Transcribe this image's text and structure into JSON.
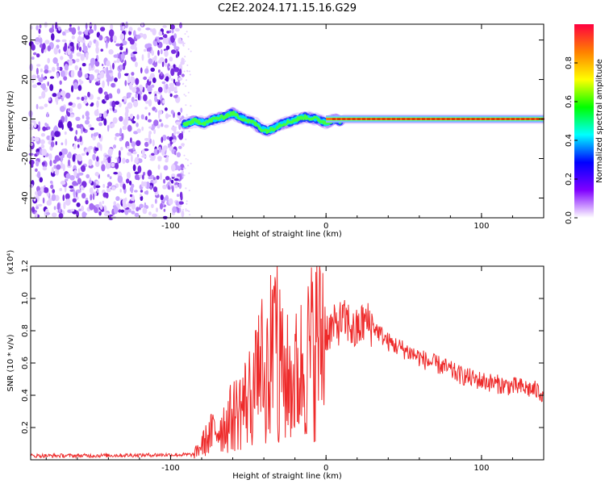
{
  "title": "C2E2.2024.171.15.16.G29",
  "chart_data": [
    {
      "type": "heatmap",
      "xlabel": "Height of straight line (km)",
      "ylabel": "Frequency (Hz)",
      "xlim": [
        -190,
        140
      ],
      "ylim": [
        -50,
        48
      ],
      "x_ticks": [
        -100,
        0,
        100
      ],
      "y_ticks": [
        -40,
        -20,
        0,
        20,
        40
      ],
      "noise_region_x": [
        -190,
        -92
      ],
      "noise_colors": [
        "#e6d2ff",
        "#c9a6ff",
        "#a56cf2",
        "#7a2fe0",
        "#5a10d0"
      ],
      "trace": {
        "x": [
          -92,
          -85,
          -78,
          -72,
          -66,
          -60,
          -56,
          -50,
          -46,
          -42,
          -38,
          -34,
          -30,
          -26,
          -22,
          -18,
          -14,
          -10,
          -6,
          -3,
          0,
          3,
          6,
          9,
          12,
          16,
          20,
          140
        ],
        "y": [
          -3,
          -1,
          -2,
          0,
          1,
          3,
          1,
          -1,
          -2,
          -5,
          -6,
          -5,
          -3,
          -2,
          -1,
          0,
          1,
          0.5,
          0,
          -1,
          -2,
          -1,
          0,
          -1,
          0,
          0,
          0,
          0
        ]
      },
      "colorbar": {
        "label": "Normalized spectral amplitude",
        "range": [
          0,
          1
        ],
        "ticks": [
          0.0,
          0.2,
          0.4,
          0.6,
          0.8
        ],
        "colors": [
          "#ffffff",
          "#8000ff",
          "#0000ff",
          "#00ffff",
          "#00ff00",
          "#ffff00",
          "#ff8000",
          "#ff0040"
        ]
      },
      "grid": false
    },
    {
      "type": "line",
      "xlabel": "Height of straight line (km)",
      "ylabel": "SNR (10 * v/v)",
      "y_multiplier": "(x10⁴)",
      "xlim": [
        -190,
        140
      ],
      "ylim": [
        0,
        12000
      ],
      "x_ticks": [
        -100,
        0,
        100
      ],
      "y_ticks": [
        0.2,
        0.4,
        0.6,
        0.8,
        1.0,
        1.2
      ],
      "line_color": "#ee2a2a",
      "series": [
        {
          "x": [
            -190,
            -150,
            -110,
            -85,
            -80,
            -72,
            -65,
            -58,
            -52,
            -46,
            -42,
            -38,
            -35,
            -33,
            -31,
            -28,
            -24,
            -20,
            -14,
            -8,
            -4,
            0,
            5,
            10,
            15,
            18,
            25,
            30,
            40,
            55,
            65,
            75,
            85,
            95,
            105,
            115,
            125,
            135,
            140
          ],
          "y": [
            250,
            260,
            300,
            320,
            900,
            1800,
            2200,
            2900,
            3600,
            4400,
            4800,
            5500,
            6500,
            12000,
            6200,
            5200,
            4900,
            5000,
            6000,
            7000,
            7600,
            8000,
            8200,
            8600,
            8500,
            7800,
            8600,
            8300,
            7300,
            6600,
            6100,
            5800,
            5300,
            5000,
            4800,
            4600,
            4500,
            4300,
            4100
          ]
        }
      ],
      "grid": false
    }
  ]
}
